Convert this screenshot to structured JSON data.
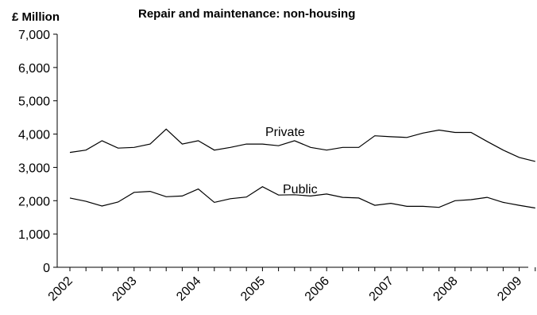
{
  "chart_data": {
    "type": "line",
    "title": "Repair and maintenance: non-housing",
    "ylabel": "£ Million",
    "xlabel": "",
    "ylim": [
      0,
      7000
    ],
    "y_ticks": [
      "0",
      "1,000",
      "2,000",
      "3,000",
      "4,000",
      "5,000",
      "6,000",
      "7,000"
    ],
    "y_tick_values": [
      0,
      1000,
      2000,
      3000,
      4000,
      5000,
      6000,
      7000
    ],
    "x_tick_labels": [
      "2002",
      "2003",
      "2004",
      "2005",
      "2006",
      "2007",
      "2008",
      "2009"
    ],
    "grid": false,
    "legend": "none (series labeled directly on chart)",
    "series": [
      {
        "name": "Private",
        "color": "#000000",
        "values": [
          3450,
          3520,
          3800,
          3580,
          3600,
          3700,
          4150,
          3700,
          3800,
          3520,
          3600,
          3700,
          3700,
          3650,
          3800,
          3600,
          3520,
          3600,
          3600,
          3950,
          3920,
          3900,
          4030,
          4120,
          4050,
          4050,
          3780,
          3520,
          3300,
          3180
        ]
      },
      {
        "name": "Public",
        "color": "#000000",
        "values": [
          2080,
          1980,
          1840,
          1960,
          2250,
          2280,
          2120,
          2140,
          2350,
          1950,
          2060,
          2110,
          2420,
          2170,
          2180,
          2140,
          2200,
          2100,
          2080,
          1860,
          1920,
          1830,
          1830,
          1800,
          2000,
          2030,
          2100,
          1950,
          1860,
          1780
        ]
      }
    ]
  }
}
